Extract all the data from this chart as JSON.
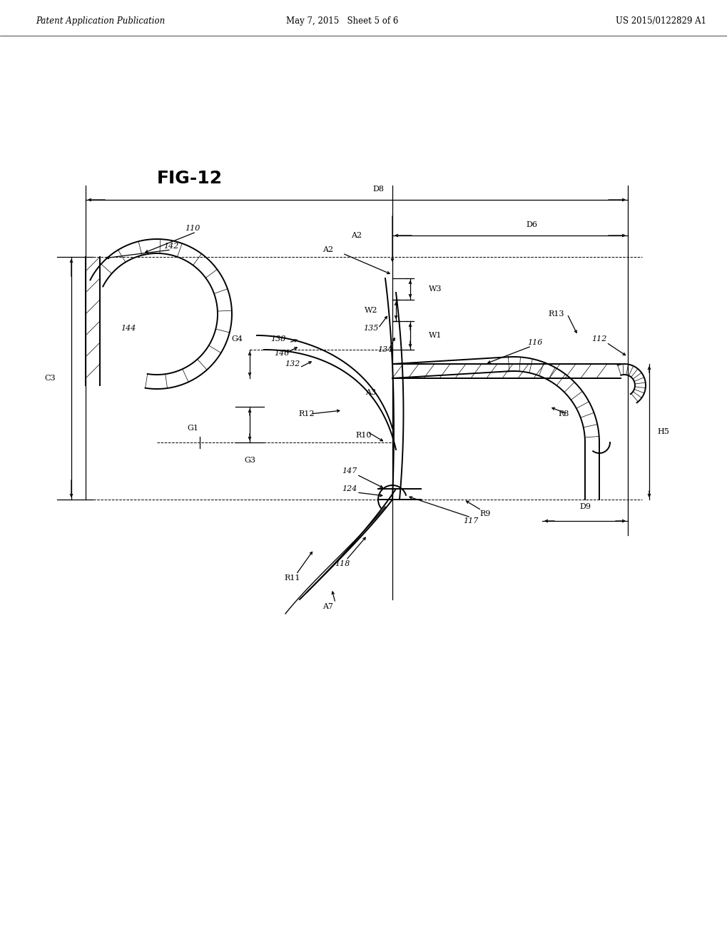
{
  "title": "FIG-12",
  "header_left": "Patent Application Publication",
  "header_mid": "May 7, 2015   Sheet 5 of 6",
  "header_right": "US 2015/0122829 A1",
  "bg_color": "#ffffff",
  "lc": "#000000",
  "header_size": 8.5,
  "fig_label_size": 18,
  "label_size": 8,
  "italic_size": 8
}
